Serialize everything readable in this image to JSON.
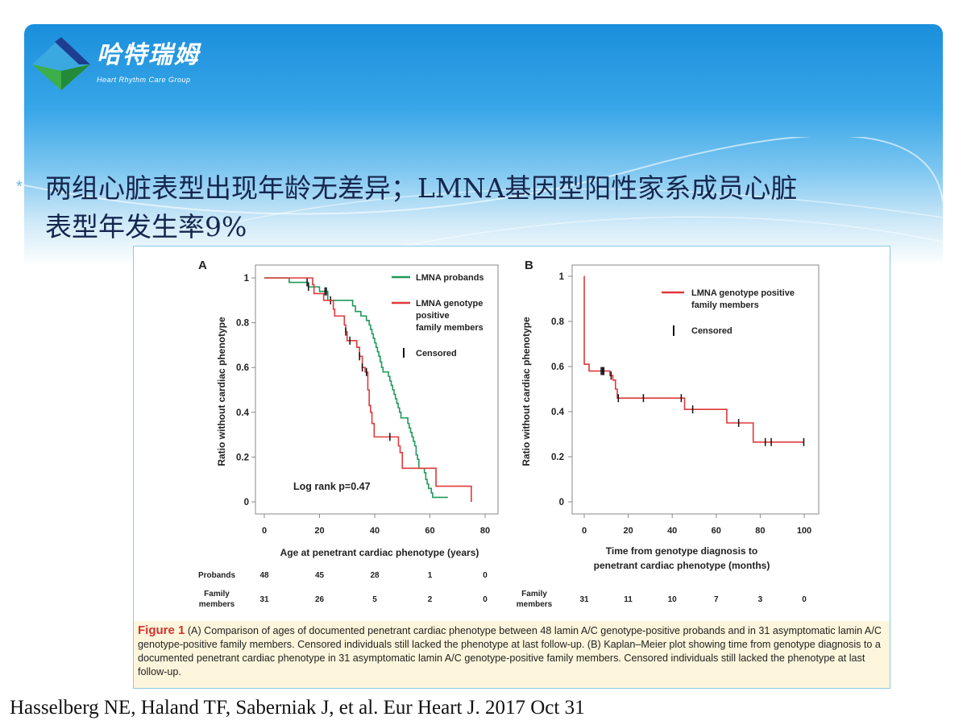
{
  "logo": {
    "cn": "哈特瑞姆",
    "en": "Heart Rhythm Care Group"
  },
  "headline": {
    "bullet": "*",
    "line1": "两组心脏表型出现年龄无差异；LMNA基因型阳性家系成员心脏",
    "line2": "表型年发生率9%"
  },
  "colors": {
    "probands": "#1f9a5a",
    "family": "#e0393a",
    "header": "#1b8fdc"
  },
  "chart_data": [
    {
      "type": "line",
      "subtype": "kaplan-meier step",
      "panel": "A",
      "xlabel": "Age at penetrant cardiac phenotype (years)",
      "ylabel": "Ratio without cardiac phenotype",
      "xlim": [
        0,
        80
      ],
      "ylim": [
        0,
        1
      ],
      "xticks": [
        "0",
        "20",
        "40",
        "60",
        "80"
      ],
      "yticks": [
        "0",
        "0.2",
        "0.4",
        "0.6",
        "0.8",
        "1"
      ],
      "annotation": "Log rank p=0.47",
      "legend": {
        "placement": "top-right",
        "censored_label": "Censored"
      },
      "series": [
        {
          "name": "LMNA probands",
          "color": "#1f9a5a",
          "steps": [
            [
              0,
              1
            ],
            [
              9,
              0.98
            ],
            [
              16,
              0.96
            ],
            [
              20,
              0.94
            ],
            [
              23,
              0.9
            ],
            [
              32,
              0.875
            ],
            [
              33,
              0.85
            ],
            [
              35,
              0.83
            ],
            [
              37,
              0.81
            ],
            [
              38,
              0.79
            ],
            [
              38.5,
              0.77
            ],
            [
              39,
              0.75
            ],
            [
              39.5,
              0.73
            ],
            [
              40,
              0.71
            ],
            [
              40.5,
              0.69
            ],
            [
              41,
              0.67
            ],
            [
              41.5,
              0.65
            ],
            [
              42,
              0.625
            ],
            [
              42.5,
              0.6
            ],
            [
              43,
              0.58
            ],
            [
              45,
              0.56
            ],
            [
              45.5,
              0.54
            ],
            [
              46,
              0.52
            ],
            [
              46.5,
              0.5
            ],
            [
              47,
              0.48
            ],
            [
              47.5,
              0.46
            ],
            [
              48,
              0.44
            ],
            [
              48.5,
              0.42
            ],
            [
              49,
              0.4
            ],
            [
              49.5,
              0.375
            ],
            [
              52,
              0.35
            ],
            [
              52.5,
              0.33
            ],
            [
              53,
              0.31
            ],
            [
              53.5,
              0.29
            ],
            [
              54,
              0.27
            ],
            [
              54.5,
              0.25
            ],
            [
              55,
              0.21
            ],
            [
              55.5,
              0.19
            ],
            [
              56,
              0.15
            ],
            [
              58,
              0.13
            ],
            [
              58.5,
              0.1
            ],
            [
              59,
              0.08
            ],
            [
              59.5,
              0.06
            ],
            [
              60.5,
              0.04
            ],
            [
              61,
              0.02
            ]
          ],
          "end": 66.5,
          "censored": [
            15.5,
            16,
            22,
            22.5,
            24
          ]
        },
        {
          "name": "LMNA genotype positive family members",
          "name_lines": [
            "LMNA genotype",
            "positive",
            "family members"
          ],
          "color": "#e0393a",
          "steps": [
            [
              0,
              1
            ],
            [
              17.5,
              0.97
            ],
            [
              18,
              0.93
            ],
            [
              21.5,
              0.9
            ],
            [
              25,
              0.86
            ],
            [
              25.5,
              0.83
            ],
            [
              29,
              0.79
            ],
            [
              29.5,
              0.76
            ],
            [
              30,
              0.72
            ],
            [
              33.5,
              0.69
            ],
            [
              34.5,
              0.65
            ],
            [
              35.5,
              0.6
            ],
            [
              36.5,
              0.58
            ],
            [
              37.5,
              0.5
            ],
            [
              38,
              0.43
            ],
            [
              38.5,
              0.4
            ],
            [
              39,
              0.35
            ],
            [
              39.8,
              0.29
            ],
            [
              48.6,
              0.25
            ],
            [
              49.2,
              0.22
            ],
            [
              50,
              0.15
            ],
            [
              62.2,
              0.07
            ],
            [
              75,
              0
            ]
          ],
          "end": 75,
          "censored": [
            29.5,
            31,
            34.5,
            35.5,
            37,
            45.5
          ]
        }
      ],
      "risk_table": {
        "x": [
          "0",
          "20",
          "40",
          "60",
          "80"
        ],
        "rows": [
          {
            "label": "Probands",
            "values": [
              "48",
              "45",
              "28",
              "1",
              "0"
            ]
          },
          {
            "label_lines": [
              "Family",
              "members"
            ],
            "values": [
              "31",
              "26",
              "5",
              "2",
              "0"
            ]
          }
        ]
      }
    },
    {
      "type": "line",
      "subtype": "kaplan-meier step",
      "panel": "B",
      "xlabel_lines": [
        "Time from genotype diagnosis to",
        "penetrant cardiac phenotype (months)"
      ],
      "ylabel": "Ratio without cardiac phenotype",
      "xlim": [
        0,
        100
      ],
      "ylim": [
        0,
        1
      ],
      "xticks": [
        "0",
        "20",
        "40",
        "60",
        "80",
        "100"
      ],
      "yticks": [
        "0",
        "0.2",
        "0.4",
        "0.6",
        "0.8",
        "1"
      ],
      "legend": {
        "placement": "top-right",
        "censored_label": "Censored"
      },
      "series": [
        {
          "name": "LMNA genotype positive family members",
          "name_lines": [
            "LMNA genotype positive",
            "family members"
          ],
          "color": "#e0393a",
          "steps": [
            [
              0,
              1
            ],
            [
              0.01,
              0.61
            ],
            [
              2.2,
              0.58
            ],
            [
              11.7,
              0.56
            ],
            [
              13,
              0.54
            ],
            [
              14.2,
              0.5
            ],
            [
              15,
              0.46
            ],
            [
              45.6,
              0.41
            ],
            [
              64.8,
              0.35
            ],
            [
              76.8,
              0.265
            ]
          ],
          "end": 100,
          "censored": [
            7.7,
            8.3,
            8.9,
            12.2,
            15.5,
            26.9,
            44.1,
            49.3,
            70.2,
            82.3,
            85,
            99.8
          ]
        }
      ],
      "risk_table": {
        "x": [
          "0",
          "20",
          "40",
          "60",
          "80",
          "100"
        ],
        "rows": [
          {
            "label_lines": [
              "Family",
              "members"
            ],
            "values": [
              "31",
              "11",
              "10",
              "7",
              "3",
              "0"
            ]
          }
        ]
      }
    }
  ],
  "caption": {
    "label": "Figure 1",
    "text": " (A) Comparison of ages of documented penetrant cardiac phenotype between 48 lamin A/C genotype-positive probands and in 31 asymptomatic lamin A/C genotype-positive family members. Censored individuals still lacked the phenotype at last follow-up. (B) Kaplan–Meier plot showing time from genotype diagnosis to a documented penetrant cardiac phenotype in 31 asymptomatic lamin A/C genotype-positive family members. Censored individuals still lacked the phenotype at last follow-up."
  },
  "citation": "Hasselberg NE, Haland TF, Saberniak J, et al. Eur Heart J. 2017 Oct 31"
}
